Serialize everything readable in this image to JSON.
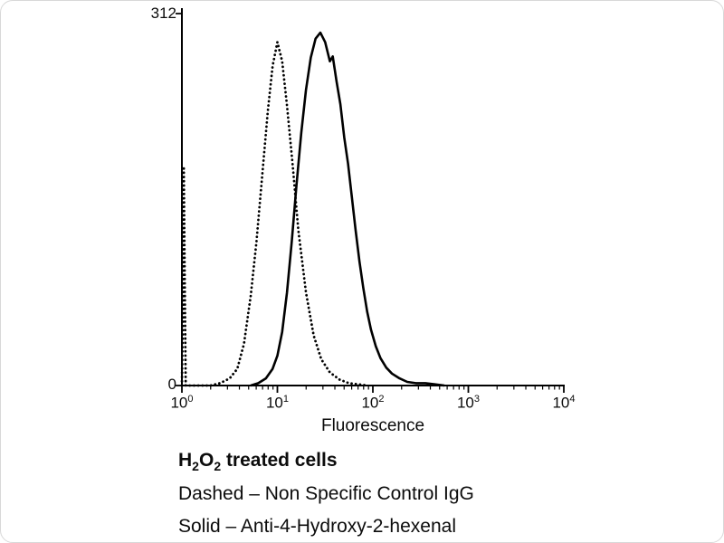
{
  "figure": {
    "background": "#ffffff",
    "curve_color": "#000000"
  },
  "chart": {
    "y_axis": {
      "max_label": "312",
      "min_label": "0"
    },
    "x_axis": {
      "label": "Fluorescence",
      "ticks": [
        {
          "base": "10",
          "exp": "0"
        },
        {
          "base": "10",
          "exp": "1"
        },
        {
          "base": "10",
          "exp": "2"
        },
        {
          "base": "10",
          "exp": "3"
        },
        {
          "base": "10",
          "exp": "4"
        }
      ]
    }
  },
  "caption": {
    "line1": {
      "h": "H",
      "sub1": "2",
      "o": "O",
      "sub2": "2",
      "rest": " treated cells"
    },
    "line2": "Dashed – Non Specific Control IgG",
    "line3": "Solid – Anti-4-Hydroxy-2-hexenal"
  },
  "chart_data": {
    "type": "line",
    "subtype": "flow-cytometry-histogram",
    "title": "H2O2 treated cells",
    "xlabel": "Fluorescence",
    "ylabel": "",
    "x_scale": "log10",
    "xlim": [
      1,
      10000
    ],
    "ylim": [
      0,
      312
    ],
    "x_tick_labels": [
      "10^0",
      "10^1",
      "10^2",
      "10^3",
      "10^4"
    ],
    "y_tick_labels": [
      "0",
      "312"
    ],
    "grid": false,
    "legend_position": "caption-below",
    "legend": [
      {
        "style": "dashed",
        "name": "Non Specific Control IgG"
      },
      {
        "style": "solid",
        "name": "Anti-4-Hydroxy-2-hexenal"
      }
    ],
    "series": [
      {
        "name": "Non Specific Control IgG",
        "style": "dashed",
        "color": "#000000",
        "x_log10": [
          0.0,
          0.01,
          0.02,
          0.03,
          0.04,
          0.3,
          0.4,
          0.5,
          0.58,
          0.65,
          0.72,
          0.78,
          0.84,
          0.9,
          0.95,
          1.0,
          1.05,
          1.1,
          1.16,
          1.22,
          1.3,
          1.38,
          1.46,
          1.55,
          1.65,
          1.75,
          1.85,
          1.95
        ],
        "values": [
          0,
          60,
          182,
          80,
          0,
          0,
          2,
          6,
          14,
          35,
          75,
          120,
          175,
          230,
          268,
          288,
          272,
          235,
          185,
          130,
          78,
          42,
          22,
          11,
          5,
          2,
          1,
          0
        ]
      },
      {
        "name": "Anti-4-Hydroxy-2-hexenal",
        "style": "solid",
        "color": "#000000",
        "x_log10": [
          0.72,
          0.8,
          0.88,
          0.95,
          1.0,
          1.05,
          1.1,
          1.15,
          1.2,
          1.25,
          1.3,
          1.35,
          1.4,
          1.45,
          1.5,
          1.55,
          1.58,
          1.62,
          1.66,
          1.7,
          1.74,
          1.78,
          1.82,
          1.86,
          1.9,
          1.94,
          1.98,
          2.03,
          2.08,
          2.14,
          2.2,
          2.28,
          2.36,
          2.45,
          2.55,
          2.65,
          2.75
        ],
        "values": [
          0,
          2,
          6,
          14,
          25,
          45,
          78,
          120,
          168,
          212,
          248,
          275,
          291,
          296,
          288,
          272,
          276,
          255,
          236,
          208,
          186,
          158,
          130,
          104,
          82,
          62,
          47,
          33,
          23,
          15,
          10,
          6,
          3,
          2,
          2,
          1,
          0
        ]
      }
    ]
  }
}
